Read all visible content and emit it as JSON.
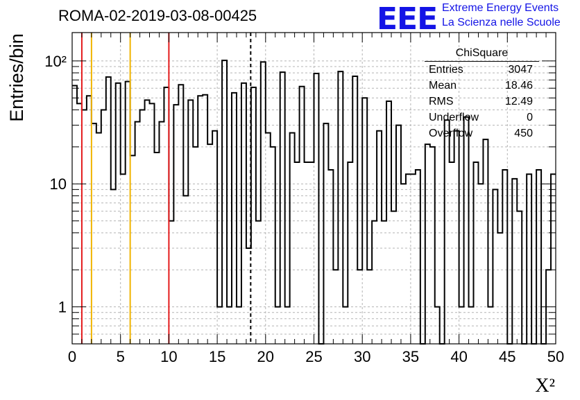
{
  "header": {
    "run_title": "ROMA-02-2019-03-08-00425",
    "logo_text": "EEE",
    "logo_line1": "Extreme Energy Events",
    "logo_line2": "La Scienza nelle Scuole",
    "logo_color": "#1414e6"
  },
  "stats": {
    "title": "ChiSquare",
    "rows": [
      {
        "key": "Entries",
        "value": "3047"
      },
      {
        "key": "Mean",
        "value": "18.46"
      },
      {
        "key": "RMS",
        "value": "12.49"
      },
      {
        "key": "Underflow",
        "value": "0"
      },
      {
        "key": "Overflow",
        "value": "450"
      }
    ]
  },
  "chart_data": {
    "type": "histogram",
    "xlabel": "X²",
    "ylabel": "Entries/bin",
    "xlim": [
      0,
      50
    ],
    "ylim": [
      0.5,
      170
    ],
    "yscale": "log",
    "grid": true,
    "bin_width": 0.5,
    "x_ticks": [
      "0",
      "5",
      "10",
      "15",
      "20",
      "25",
      "30",
      "35",
      "40",
      "45",
      "50"
    ],
    "y_ticks": [
      {
        "value": 1,
        "label": "1"
      },
      {
        "value": 10,
        "label": "10"
      },
      {
        "value": 100,
        "label": "10²"
      }
    ],
    "bin_values": [
      63,
      45,
      40,
      52,
      31,
      26,
      40,
      74,
      9,
      66,
      12,
      68,
      17,
      32,
      40,
      48,
      45,
      18,
      32,
      61,
      5,
      44,
      64,
      8,
      48,
      20,
      52,
      53,
      21,
      27,
      1,
      101,
      1,
      55,
      1,
      66,
      3,
      61,
      5,
      98,
      26,
      20,
      1,
      81,
      1,
      26,
      15,
      62,
      15,
      15,
      79,
      0.3,
      31,
      13,
      2,
      82,
      1,
      15,
      75,
      2,
      50,
      2,
      5,
      27,
      5,
      47,
      6,
      30,
      10,
      12,
      12,
      13,
      0.3,
      21,
      20,
      1,
      0.3,
      33,
      15,
      27,
      1,
      35,
      1,
      15,
      10,
      23,
      1,
      9,
      4,
      13,
      0.3,
      11,
      6,
      0.3,
      12,
      0.3,
      13,
      0.3,
      2,
      12
    ],
    "vlines": [
      {
        "x": 1,
        "color": "#e41a1c",
        "style": "solid"
      },
      {
        "x": 2,
        "color": "#f0b400",
        "style": "solid"
      },
      {
        "x": 6,
        "color": "#f0b400",
        "style": "solid"
      },
      {
        "x": 10,
        "color": "#e41a1c",
        "style": "solid"
      },
      {
        "x": 18.46,
        "color": "#000000",
        "style": "dashed"
      }
    ]
  }
}
